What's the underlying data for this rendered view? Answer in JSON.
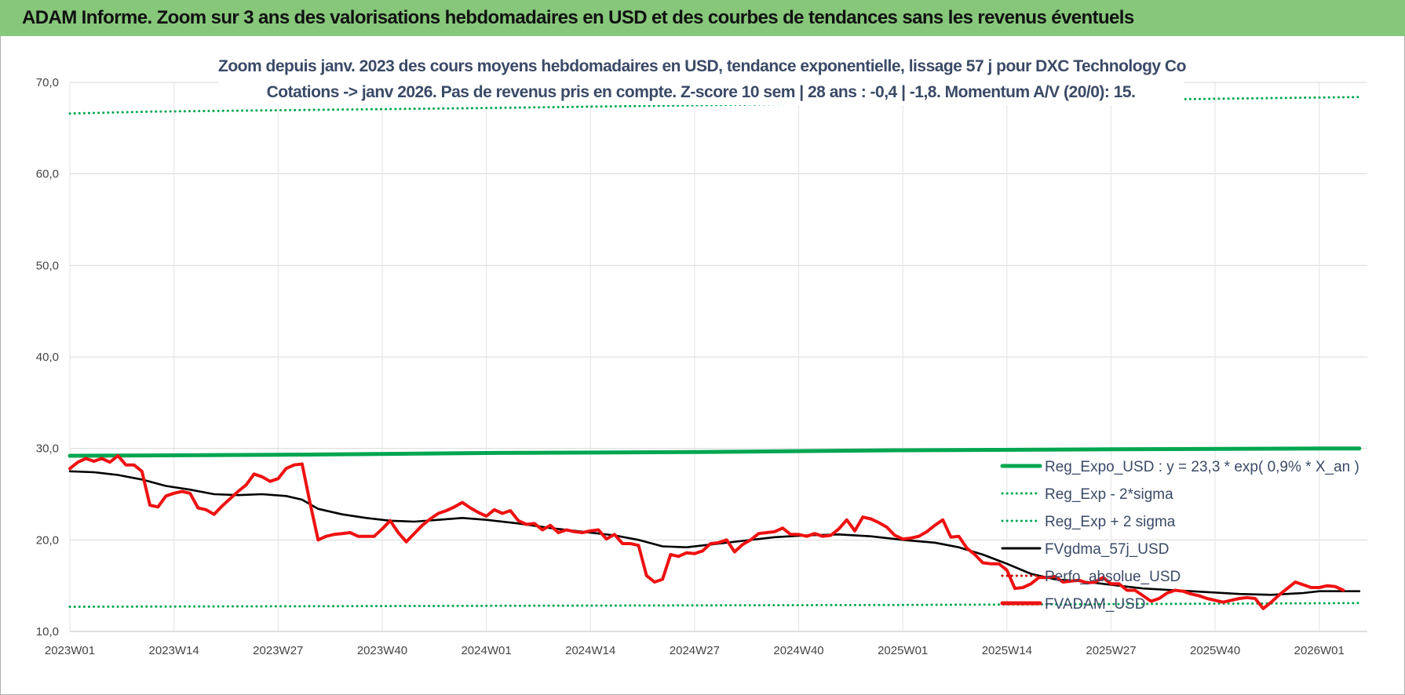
{
  "header": {
    "title": "ADAM Informe. Zoom sur 3 ans des valorisations hebdomadaires en USD et des courbes de tendances sans les revenus éventuels"
  },
  "chart_data": {
    "type": "line",
    "title_lines": [
      "Zoom depuis janv. 2023 des cours moyens hebdomadaires en USD, tendance exponentielle, lissage 57 j pour DXC Technology Co",
      "Cotations -> janv 2026. Pas de revenus pris en compte. Z-score 10 sem | 28 ans : -0,4 | -1,8. Momentum A/V (20/0): 15."
    ],
    "ylim": [
      10,
      70
    ],
    "yticks": [
      "10,0",
      "20,0",
      "30,0",
      "40,0",
      "50,0",
      "60,0",
      "70,0"
    ],
    "x_ticks": [
      "2023W01",
      "2023W14",
      "2023W27",
      "2023W40",
      "2024W01",
      "2024W14",
      "2024W27",
      "2024W40",
      "2025W01",
      "2025W14",
      "2025W27",
      "2025W40",
      "2026W01"
    ],
    "x_tick_week_index": [
      0,
      13,
      26,
      39,
      52,
      65,
      78,
      91,
      104,
      117,
      130,
      143,
      156
    ],
    "x_range_weeks": [
      0,
      161
    ],
    "grid": true,
    "legend_position": "bottom-right",
    "series": [
      {
        "name": "Reg_Expo_USD : y = 23,3 * exp( 0,9% *  X_an )",
        "color": "#00a650",
        "style": "solid-thick",
        "points": [
          [
            0,
            29.2
          ],
          [
            26,
            29.3
          ],
          [
            52,
            29.5
          ],
          [
            78,
            29.6
          ],
          [
            104,
            29.8
          ],
          [
            130,
            29.9
          ],
          [
            156,
            30.0
          ],
          [
            161,
            30.0
          ]
        ]
      },
      {
        "name": "Reg_Exp - 2*sigma",
        "color": "#00a650",
        "style": "dotted",
        "points": [
          [
            0,
            12.7
          ],
          [
            52,
            12.8
          ],
          [
            104,
            12.9
          ],
          [
            161,
            13.1
          ]
        ]
      },
      {
        "name": "Reg_Exp + 2 sigma",
        "color": "#00a650",
        "style": "dotted",
        "points": [
          [
            0,
            66.6
          ],
          [
            10,
            66.8
          ],
          [
            52,
            67.2
          ],
          [
            104,
            67.8
          ],
          [
            161,
            68.4
          ]
        ]
      },
      {
        "name": "FVgdma_57j_USD",
        "color": "#000000",
        "style": "solid",
        "points": [
          [
            0,
            27.5
          ],
          [
            3,
            27.4
          ],
          [
            6,
            27.1
          ],
          [
            9,
            26.6
          ],
          [
            12,
            25.9
          ],
          [
            15,
            25.5
          ],
          [
            18,
            25.0
          ],
          [
            21,
            24.9
          ],
          [
            24,
            25.0
          ],
          [
            27,
            24.8
          ],
          [
            29,
            24.4
          ],
          [
            31,
            23.4
          ],
          [
            34,
            22.8
          ],
          [
            37,
            22.4
          ],
          [
            40,
            22.1
          ],
          [
            43,
            22.0
          ],
          [
            46,
            22.2
          ],
          [
            49,
            22.4
          ],
          [
            52,
            22.2
          ],
          [
            56,
            21.8
          ],
          [
            60,
            21.3
          ],
          [
            64,
            20.9
          ],
          [
            68,
            20.5
          ],
          [
            71,
            20.0
          ],
          [
            74,
            19.3
          ],
          [
            77,
            19.2
          ],
          [
            80,
            19.5
          ],
          [
            84,
            19.9
          ],
          [
            88,
            20.3
          ],
          [
            92,
            20.5
          ],
          [
            96,
            20.6
          ],
          [
            100,
            20.4
          ],
          [
            104,
            20.0
          ],
          [
            108,
            19.7
          ],
          [
            111,
            19.2
          ],
          [
            114,
            18.4
          ],
          [
            117,
            17.4
          ],
          [
            120,
            16.3
          ],
          [
            123,
            15.7
          ],
          [
            126,
            15.5
          ],
          [
            130,
            15.1
          ],
          [
            134,
            14.7
          ],
          [
            138,
            14.5
          ],
          [
            142,
            14.3
          ],
          [
            146,
            14.1
          ],
          [
            150,
            14.0
          ],
          [
            154,
            14.2
          ],
          [
            156,
            14.4
          ],
          [
            161,
            14.4
          ]
        ]
      },
      {
        "name": "Perfo_absolue_USD",
        "color": "#cc0000",
        "style": "dotted",
        "points": []
      },
      {
        "name": "FVADAM_USD",
        "color": "#ee1111",
        "style": "solid-thick",
        "points": [
          [
            0,
            27.8
          ],
          [
            1,
            28.5
          ],
          [
            2,
            28.9
          ],
          [
            3,
            28.6
          ],
          [
            4,
            28.9
          ],
          [
            5,
            28.5
          ],
          [
            6,
            29.2
          ],
          [
            7,
            28.2
          ],
          [
            8,
            28.2
          ],
          [
            9,
            27.5
          ],
          [
            10,
            23.8
          ],
          [
            11,
            23.6
          ],
          [
            12,
            24.8
          ],
          [
            13,
            25.1
          ],
          [
            14,
            25.3
          ],
          [
            15,
            25.1
          ],
          [
            16,
            23.5
          ],
          [
            17,
            23.3
          ],
          [
            18,
            22.8
          ],
          [
            19,
            23.7
          ],
          [
            20,
            24.5
          ],
          [
            21,
            25.3
          ],
          [
            22,
            26.0
          ],
          [
            23,
            27.2
          ],
          [
            24,
            26.9
          ],
          [
            25,
            26.4
          ],
          [
            26,
            26.7
          ],
          [
            27,
            27.8
          ],
          [
            28,
            28.2
          ],
          [
            29,
            28.3
          ],
          [
            30,
            24.0
          ],
          [
            31,
            20.0
          ],
          [
            32,
            20.4
          ],
          [
            33,
            20.6
          ],
          [
            34,
            20.7
          ],
          [
            35,
            20.8
          ],
          [
            36,
            20.4
          ],
          [
            37,
            20.4
          ],
          [
            38,
            20.4
          ],
          [
            39,
            21.2
          ],
          [
            40,
            22.1
          ],
          [
            41,
            20.8
          ],
          [
            42,
            19.8
          ],
          [
            43,
            20.7
          ],
          [
            44,
            21.6
          ],
          [
            45,
            22.3
          ],
          [
            46,
            22.9
          ],
          [
            47,
            23.2
          ],
          [
            48,
            23.6
          ],
          [
            49,
            24.1
          ],
          [
            50,
            23.5
          ],
          [
            51,
            23.0
          ],
          [
            52,
            22.6
          ],
          [
            53,
            23.3
          ],
          [
            54,
            22.9
          ],
          [
            55,
            23.2
          ],
          [
            56,
            22.1
          ],
          [
            57,
            21.7
          ],
          [
            58,
            21.8
          ],
          [
            59,
            21.1
          ],
          [
            60,
            21.6
          ],
          [
            61,
            20.8
          ],
          [
            62,
            21.1
          ],
          [
            63,
            20.9
          ],
          [
            64,
            20.8
          ],
          [
            65,
            21.0
          ],
          [
            66,
            21.1
          ],
          [
            67,
            20.1
          ],
          [
            68,
            20.6
          ],
          [
            69,
            19.6
          ],
          [
            70,
            19.6
          ],
          [
            71,
            19.4
          ],
          [
            72,
            16.1
          ],
          [
            73,
            15.4
          ],
          [
            74,
            15.7
          ],
          [
            75,
            18.4
          ],
          [
            76,
            18.2
          ],
          [
            77,
            18.6
          ],
          [
            78,
            18.5
          ],
          [
            79,
            18.8
          ],
          [
            80,
            19.6
          ],
          [
            81,
            19.7
          ],
          [
            82,
            20.0
          ],
          [
            83,
            18.7
          ],
          [
            84,
            19.5
          ],
          [
            85,
            20.0
          ],
          [
            86,
            20.7
          ],
          [
            87,
            20.8
          ],
          [
            88,
            20.9
          ],
          [
            89,
            21.3
          ],
          [
            90,
            20.6
          ],
          [
            91,
            20.6
          ],
          [
            92,
            20.4
          ],
          [
            93,
            20.7
          ],
          [
            94,
            20.4
          ],
          [
            95,
            20.5
          ],
          [
            96,
            21.2
          ],
          [
            97,
            22.2
          ],
          [
            98,
            21.0
          ],
          [
            99,
            22.5
          ],
          [
            100,
            22.3
          ],
          [
            101,
            21.9
          ],
          [
            102,
            21.4
          ],
          [
            103,
            20.5
          ],
          [
            104,
            20.1
          ],
          [
            105,
            20.2
          ],
          [
            106,
            20.4
          ],
          [
            107,
            20.9
          ],
          [
            108,
            21.6
          ],
          [
            109,
            22.2
          ],
          [
            110,
            20.3
          ],
          [
            111,
            20.4
          ],
          [
            112,
            19.1
          ],
          [
            113,
            18.4
          ],
          [
            114,
            17.5
          ],
          [
            115,
            17.4
          ],
          [
            116,
            17.4
          ],
          [
            117,
            16.7
          ],
          [
            118,
            14.7
          ],
          [
            119,
            14.8
          ],
          [
            120,
            15.2
          ],
          [
            121,
            15.9
          ],
          [
            122,
            15.9
          ],
          [
            123,
            16.0
          ],
          [
            124,
            15.4
          ],
          [
            125,
            15.5
          ],
          [
            126,
            15.6
          ],
          [
            127,
            15.3
          ],
          [
            128,
            15.4
          ],
          [
            129,
            15.9
          ],
          [
            130,
            15.2
          ],
          [
            131,
            15.2
          ],
          [
            132,
            14.5
          ],
          [
            133,
            14.5
          ],
          [
            134,
            13.9
          ],
          [
            135,
            13.3
          ],
          [
            136,
            13.6
          ],
          [
            137,
            14.2
          ],
          [
            138,
            14.5
          ],
          [
            139,
            14.4
          ],
          [
            140,
            14.1
          ],
          [
            141,
            13.9
          ],
          [
            142,
            13.6
          ],
          [
            143,
            13.4
          ],
          [
            144,
            13.2
          ],
          [
            145,
            13.4
          ],
          [
            146,
            13.6
          ],
          [
            147,
            13.7
          ],
          [
            148,
            13.6
          ],
          [
            149,
            12.5
          ],
          [
            150,
            13.2
          ],
          [
            151,
            14.0
          ],
          [
            152,
            14.7
          ],
          [
            153,
            15.4
          ],
          [
            154,
            15.1
          ],
          [
            155,
            14.8
          ],
          [
            156,
            14.8
          ],
          [
            157,
            15.0
          ],
          [
            158,
            14.9
          ],
          [
            159,
            14.5
          ]
        ]
      }
    ]
  }
}
